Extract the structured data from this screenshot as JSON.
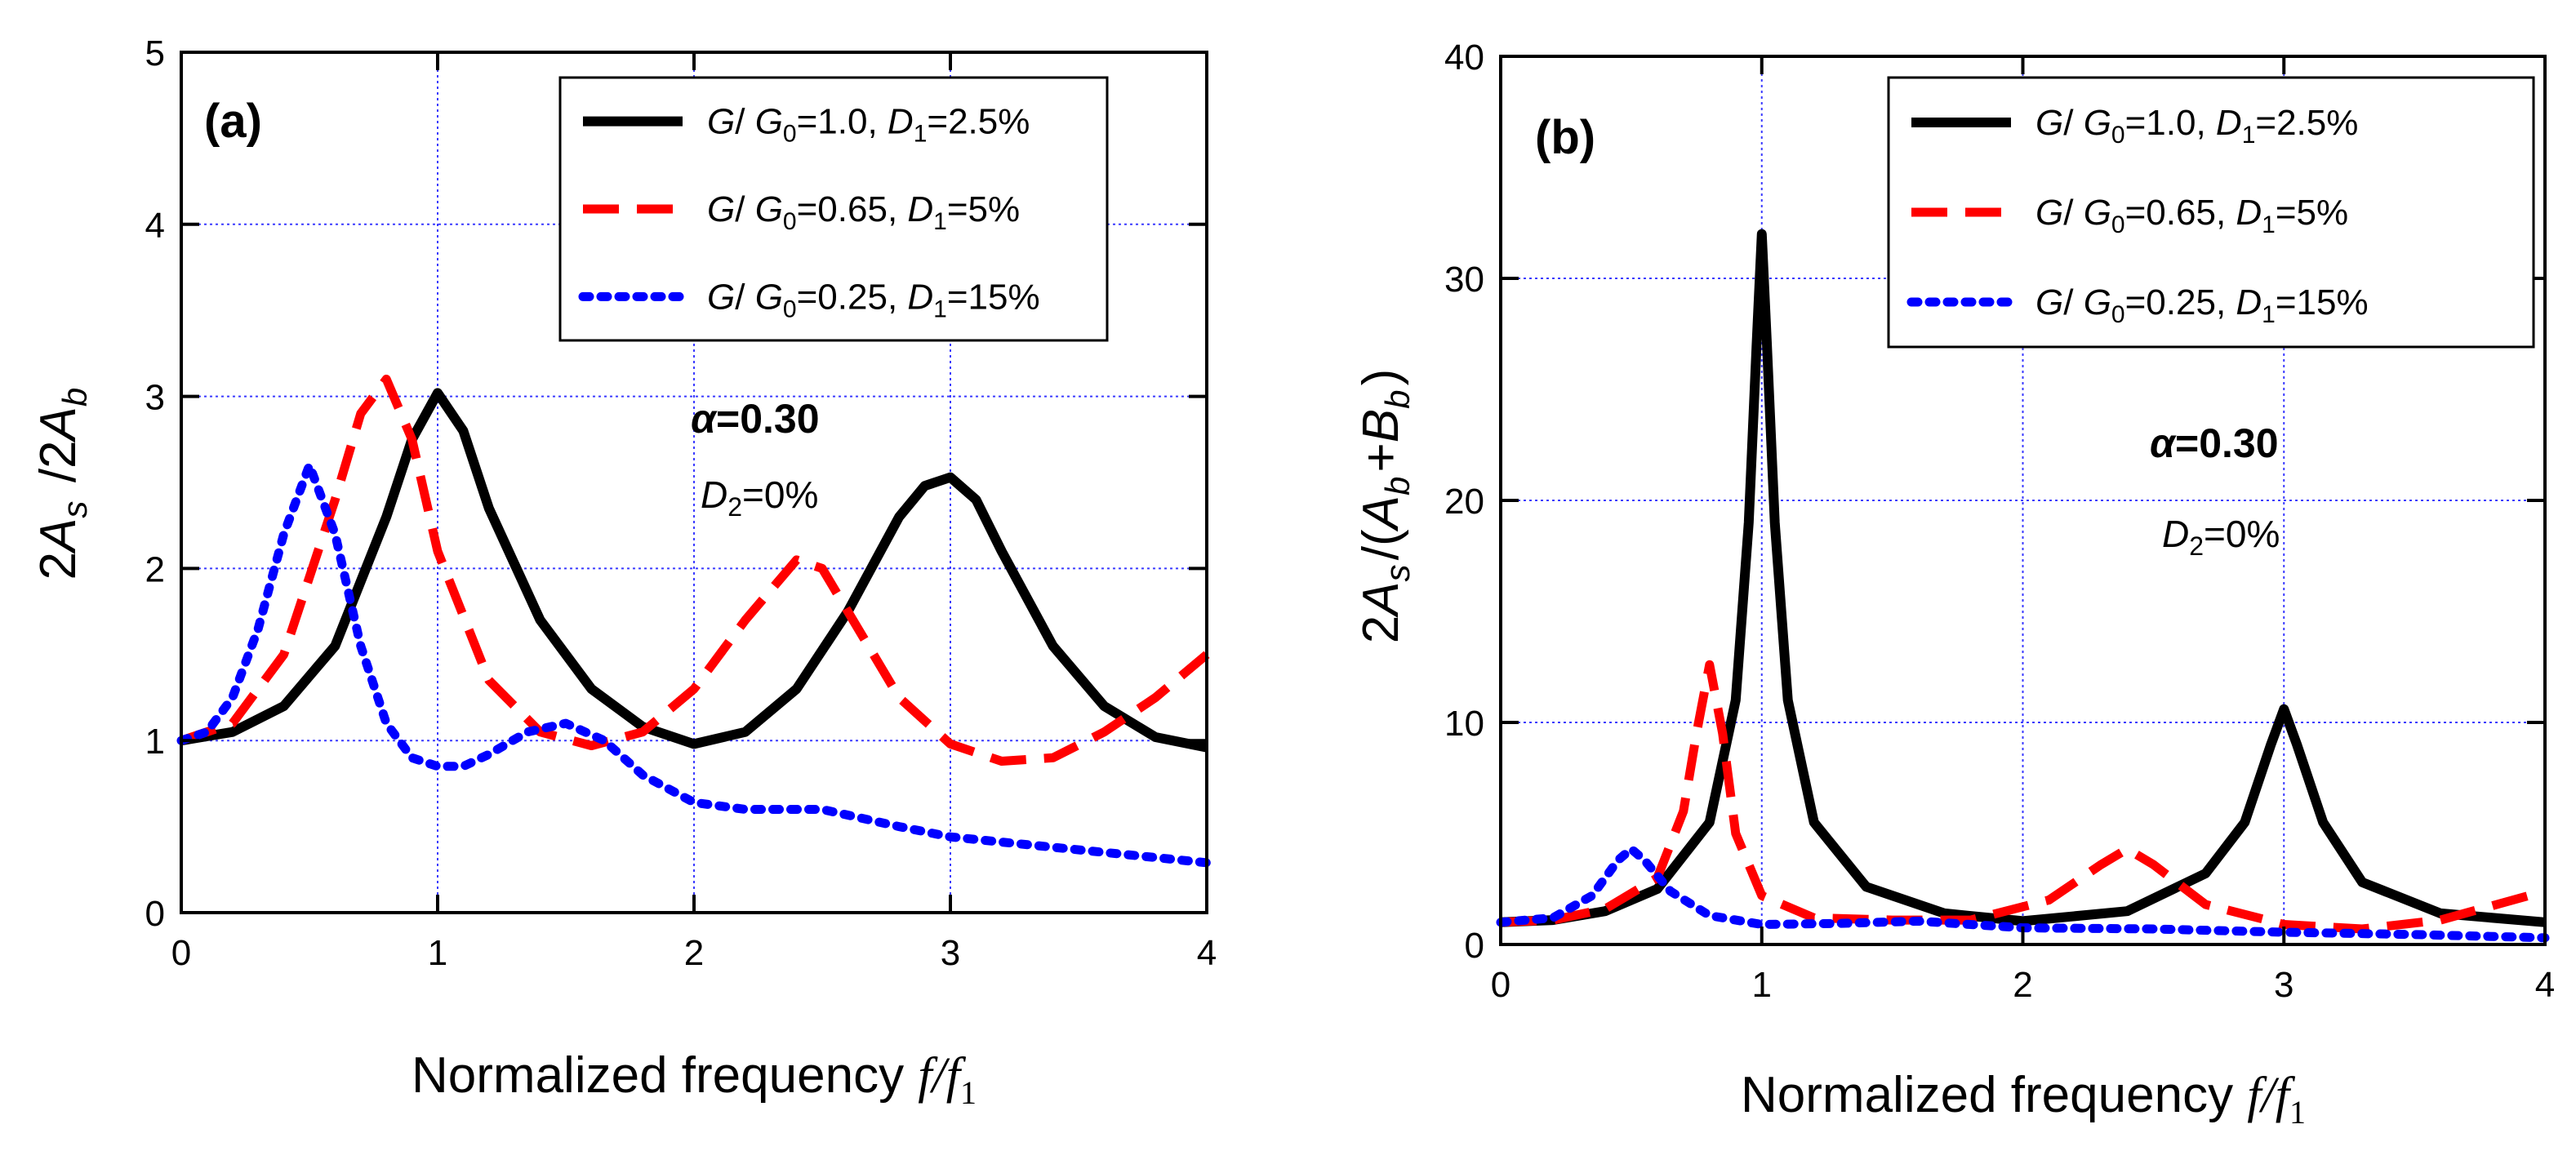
{
  "chart_data": [
    {
      "type": "line",
      "panel_label": "(a)",
      "xlabel": "Normalized frequency",
      "xlabel_math": "f/f1",
      "ylabel": "2As /2Ab",
      "xlim": [
        0,
        4
      ],
      "ylim": [
        0,
        5
      ],
      "xticks": [
        0,
        1,
        2,
        3,
        4
      ],
      "yticks": [
        0,
        1,
        2,
        3,
        4,
        5
      ],
      "grid": true,
      "legend_position": "top-right",
      "annotation": {
        "alpha_label": "α=0.30",
        "damping_label": "D2=0%"
      },
      "series": [
        {
          "name": "G/G0=1.0,  D1=2.5%",
          "color": "#000000",
          "style": "solid",
          "x": [
            0,
            0.2,
            0.4,
            0.6,
            0.8,
            0.9,
            1.0,
            1.1,
            1.2,
            1.4,
            1.6,
            1.8,
            2.0,
            2.2,
            2.4,
            2.6,
            2.8,
            2.9,
            3.0,
            3.1,
            3.2,
            3.4,
            3.6,
            3.8,
            4.0
          ],
          "y": [
            1.0,
            1.05,
            1.2,
            1.55,
            2.3,
            2.75,
            3.02,
            2.8,
            2.35,
            1.7,
            1.3,
            1.08,
            0.98,
            1.05,
            1.3,
            1.75,
            2.3,
            2.48,
            2.53,
            2.4,
            2.1,
            1.55,
            1.2,
            1.02,
            0.96
          ]
        },
        {
          "name": "G/G0=0.65, D1=5%",
          "color": "#ff0000",
          "style": "dashed",
          "x": [
            0,
            0.2,
            0.4,
            0.6,
            0.7,
            0.8,
            0.9,
            1.0,
            1.2,
            1.4,
            1.6,
            1.8,
            2.0,
            2.2,
            2.4,
            2.5,
            2.6,
            2.8,
            3.0,
            3.2,
            3.4,
            3.6,
            3.8,
            4.0
          ],
          "y": [
            1.0,
            1.1,
            1.5,
            2.4,
            2.9,
            3.1,
            2.75,
            2.1,
            1.35,
            1.05,
            0.97,
            1.05,
            1.3,
            1.7,
            2.05,
            2.0,
            1.75,
            1.25,
            0.98,
            0.88,
            0.9,
            1.05,
            1.25,
            1.5
          ]
        },
        {
          "name": "G/G0=0.25, D1=15%",
          "color": "#0000ff",
          "style": "dotted",
          "x": [
            0,
            0.1,
            0.2,
            0.3,
            0.4,
            0.5,
            0.6,
            0.7,
            0.8,
            0.9,
            1.0,
            1.1,
            1.2,
            1.35,
            1.5,
            1.65,
            1.8,
            2.0,
            2.2,
            2.5,
            2.8,
            3.0,
            3.4,
            3.8,
            4.0
          ],
          "y": [
            1.0,
            1.05,
            1.25,
            1.65,
            2.2,
            2.6,
            2.2,
            1.55,
            1.1,
            0.9,
            0.85,
            0.85,
            0.92,
            1.05,
            1.1,
            1.0,
            0.8,
            0.64,
            0.6,
            0.6,
            0.5,
            0.44,
            0.38,
            0.32,
            0.29
          ]
        }
      ]
    },
    {
      "type": "line",
      "panel_label": "(b)",
      "xlabel": "Normalized frequency",
      "xlabel_math": "f/f1",
      "ylabel": "2As/(Ab+Bb)",
      "xlim": [
        0,
        4
      ],
      "ylim": [
        0,
        40
      ],
      "xticks": [
        0,
        1,
        2,
        3,
        4
      ],
      "yticks": [
        0,
        10,
        20,
        30,
        40
      ],
      "grid": true,
      "legend_position": "top-right",
      "annotation": {
        "alpha_label": "α=0.30",
        "damping_label": "D2=0%"
      },
      "series": [
        {
          "name": "G/G0=1.0,  D1=2.5%",
          "color": "#000000",
          "style": "solid",
          "x": [
            0,
            0.2,
            0.4,
            0.6,
            0.8,
            0.9,
            0.95,
            0.98,
            1.0,
            1.02,
            1.05,
            1.1,
            1.2,
            1.4,
            1.7,
            2.0,
            2.4,
            2.7,
            2.85,
            2.95,
            3.0,
            3.05,
            3.15,
            3.3,
            3.6,
            4.0
          ],
          "y": [
            1.0,
            1.1,
            1.5,
            2.5,
            5.5,
            11,
            19,
            27,
            32,
            27,
            19,
            11,
            5.5,
            2.6,
            1.4,
            1.05,
            1.5,
            3.2,
            5.5,
            9.0,
            10.6,
            9.0,
            5.5,
            2.8,
            1.4,
            1.0
          ]
        },
        {
          "name": "G/G0=0.65, D1=5%",
          "color": "#ff0000",
          "style": "dashed",
          "x": [
            0,
            0.2,
            0.4,
            0.6,
            0.7,
            0.75,
            0.8,
            0.85,
            0.9,
            1.0,
            1.2,
            1.5,
            1.8,
            2.1,
            2.3,
            2.4,
            2.5,
            2.7,
            3.0,
            3.3,
            3.6,
            4.0
          ],
          "y": [
            1.0,
            1.1,
            1.6,
            3.0,
            6.0,
            9.5,
            12.6,
            9.5,
            5.0,
            2.2,
            1.2,
            1.1,
            1.1,
            2.0,
            3.6,
            4.3,
            3.6,
            1.8,
            0.9,
            0.7,
            1.1,
            2.4
          ]
        },
        {
          "name": "G/G0=0.25, D1=15%",
          "color": "#0000ff",
          "style": "dotted",
          "x": [
            0,
            0.2,
            0.35,
            0.45,
            0.5,
            0.55,
            0.65,
            0.8,
            1.0,
            1.3,
            1.6,
            2.0,
            2.5,
            3.0,
            3.5,
            4.0
          ],
          "y": [
            1.0,
            1.2,
            2.2,
            3.8,
            4.3,
            3.8,
            2.4,
            1.3,
            0.9,
            0.95,
            1.05,
            0.75,
            0.7,
            0.55,
            0.45,
            0.3
          ]
        }
      ]
    }
  ]
}
